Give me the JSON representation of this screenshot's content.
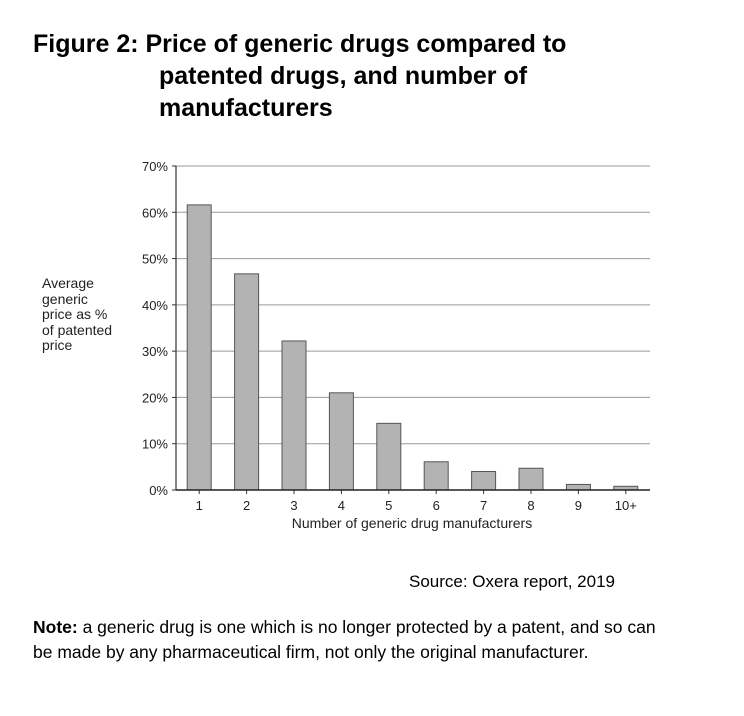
{
  "title_line1": "Figure 2: Price of generic drugs compared to",
  "title_line2": "patented drugs, and number of",
  "title_line3": "manufacturers",
  "source": "Source: Oxera report, 2019",
  "note": {
    "label": "Note:",
    "text": " a generic drug is one which is no longer protected by a patent, and so can be made by any pharmaceutical firm, not only the original manufacturer."
  },
  "chart_data": {
    "type": "bar",
    "title": "",
    "xlabel": "Number of generic drug manufacturers",
    "ylabel": "Average generic price as % of patented price",
    "categories": [
      "1",
      "2",
      "3",
      "4",
      "5",
      "6",
      "7",
      "8",
      "9",
      "10+"
    ],
    "values": [
      61.6,
      46.7,
      32.2,
      21.0,
      14.4,
      6.1,
      4.0,
      4.7,
      1.2,
      0.8
    ],
    "ylim": [
      0,
      70
    ],
    "yticks": [
      "0%",
      "10%",
      "20%",
      "30%",
      "40%",
      "50%",
      "60%",
      "70%"
    ],
    "grid": true,
    "bar_color": "#b3b3b3"
  }
}
